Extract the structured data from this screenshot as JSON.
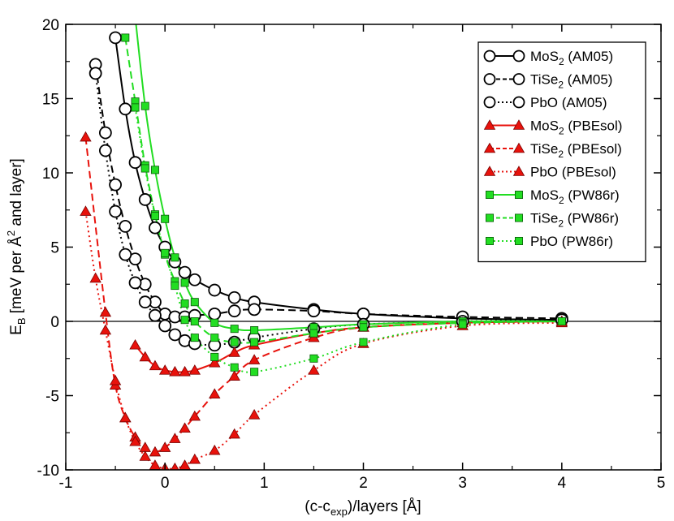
{
  "chart_data": {
    "type": "line",
    "xlabel": {
      "main": "(c-c",
      "sub": "exp",
      "rest": ")/layers [Å]"
    },
    "ylabel": {
      "main": "E",
      "sub": "B",
      "rest": " [meV per Å",
      "sup": "2",
      "tail": " and layer]"
    },
    "xlim": [
      -1,
      5
    ],
    "ylim": [
      -10,
      20
    ],
    "xticks": [
      -1,
      0,
      1,
      2,
      3,
      4,
      5
    ],
    "yticks": [
      -10,
      -5,
      0,
      5,
      10,
      15,
      20
    ],
    "xtick_labels": [
      "-1",
      "0",
      "1",
      "2",
      "3",
      "4",
      "5"
    ],
    "ytick_labels": [
      "-10",
      "-5",
      "0",
      "5",
      "10",
      "15",
      "20"
    ],
    "zero_line": true,
    "grid": false,
    "legend_position": "top-right",
    "colors": {
      "AM05": "#000000",
      "PBEsol": "#e8120c",
      "PW86r": "#22dd22"
    },
    "series": [
      {
        "id": "mos2-am05",
        "name": "MoS2 (AM05)",
        "label_parts": [
          "MoS",
          "2",
          " (AM05)"
        ],
        "functional": "AM05",
        "marker": "circle",
        "dash": "solid",
        "x": [
          -0.5,
          -0.4,
          -0.3,
          -0.2,
          -0.1,
          0.0,
          0.1,
          0.2,
          0.3,
          0.5,
          0.7,
          0.9,
          1.5,
          2.0,
          3.0,
          4.0
        ],
        "y": [
          19.1,
          14.3,
          10.7,
          8.2,
          6.3,
          5.0,
          4.0,
          3.3,
          2.8,
          2.1,
          1.6,
          1.3,
          0.8,
          0.5,
          0.2,
          0.1
        ]
      },
      {
        "id": "tise2-am05",
        "name": "TiSe2 (AM05)",
        "label_parts": [
          "TiSe",
          "2",
          " (AM05)"
        ],
        "functional": "AM05",
        "marker": "circle",
        "dash": "dash",
        "x": [
          -0.7,
          -0.6,
          -0.5,
          -0.4,
          -0.3,
          -0.2,
          -0.1,
          0.0,
          0.1,
          0.2,
          0.3,
          0.5,
          0.7,
          0.9,
          1.5,
          2.0,
          3.0,
          4.0
        ],
        "y": [
          17.3,
          12.7,
          9.2,
          6.4,
          4.2,
          2.5,
          1.3,
          0.5,
          0.3,
          0.3,
          0.4,
          0.5,
          0.7,
          0.8,
          0.7,
          0.5,
          0.3,
          0.2
        ]
      },
      {
        "id": "pbo-am05",
        "name": "PbO (AM05)",
        "label_parts": [
          "PbO",
          "",
          " (AM05)"
        ],
        "functional": "AM05",
        "marker": "circle",
        "dash": "dot",
        "x": [
          -0.7,
          -0.6,
          -0.5,
          -0.4,
          -0.3,
          -0.2,
          -0.1,
          0.0,
          0.1,
          0.2,
          0.3,
          0.5,
          0.7,
          0.9,
          1.5,
          2.0,
          3.0,
          4.0
        ],
        "y": [
          16.7,
          11.5,
          7.4,
          4.5,
          2.6,
          1.3,
          0.4,
          -0.3,
          -0.9,
          -1.3,
          -1.5,
          -1.6,
          -1.4,
          -1.1,
          -0.5,
          -0.2,
          0.0,
          0.1
        ]
      },
      {
        "id": "mos2-pbesol",
        "name": "MoS2 (PBEsol)",
        "label_parts": [
          "MoS",
          "2",
          " (PBEsol)"
        ],
        "functional": "PBEsol",
        "marker": "triangle",
        "dash": "solid",
        "x": [
          -0.3,
          -0.2,
          -0.1,
          0.0,
          0.1,
          0.2,
          0.3,
          0.5,
          0.7,
          0.9,
          1.5,
          2.0,
          3.0,
          4.0
        ],
        "y": [
          -1.6,
          -2.4,
          -3.0,
          -3.3,
          -3.4,
          -3.4,
          -3.3,
          -2.8,
          -2.1,
          -1.6,
          -0.8,
          -0.4,
          -0.1,
          0.0
        ]
      },
      {
        "id": "tise2-pbesol",
        "name": "TiSe2 (PBEsol)",
        "label_parts": [
          "TiSe",
          "2",
          " (PBEsol)"
        ],
        "functional": "PBEsol",
        "marker": "triangle",
        "dash": "dash",
        "x": [
          -0.8,
          -0.6,
          -0.5,
          -0.4,
          -0.3,
          -0.2,
          -0.1,
          0.0,
          0.1,
          0.2,
          0.3,
          0.5,
          0.7,
          0.9,
          1.5,
          2.0,
          3.0,
          4.0
        ],
        "y": [
          12.4,
          0.6,
          -4.3,
          -6.5,
          -7.8,
          -8.5,
          -8.8,
          -8.5,
          -7.9,
          -7.2,
          -6.4,
          -4.9,
          -3.7,
          -2.6,
          -1.1,
          -0.4,
          -0.1,
          0.0
        ]
      },
      {
        "id": "pbo-pbesol",
        "name": "PbO (PBEsol)",
        "label_parts": [
          "PbO",
          "",
          " (PBEsol)"
        ],
        "functional": "PBEsol",
        "marker": "triangle",
        "dash": "dot",
        "x": [
          -0.8,
          -0.7,
          -0.6,
          -0.5,
          -0.4,
          -0.3,
          -0.2,
          -0.1,
          0.0,
          0.1,
          0.2,
          0.3,
          0.5,
          0.7,
          0.9,
          1.5,
          2.0,
          3.0,
          4.0
        ],
        "y": [
          7.4,
          2.9,
          -0.6,
          -4.0,
          -6.5,
          -8.1,
          -9.1,
          -9.7,
          -9.9,
          -9.9,
          -9.7,
          -9.3,
          -8.7,
          -7.6,
          -6.3,
          -3.3,
          -1.5,
          -0.3,
          -0.1
        ]
      },
      {
        "id": "mos2-pw86r",
        "name": "MoS2 (PW86r)",
        "label_parts": [
          "MoS",
          "2",
          " (PW86r)"
        ],
        "functional": "PW86r",
        "marker": "square",
        "dash": "solid",
        "x": [
          -0.3,
          -0.2,
          -0.1,
          0.0,
          0.1,
          0.2,
          0.3,
          0.5,
          0.7,
          0.9,
          1.5,
          2.0,
          3.0,
          4.0
        ],
        "y": [
          20.5,
          14.5,
          10.2,
          6.9,
          4.3,
          2.6,
          1.3,
          -0.1,
          -0.5,
          -0.6,
          -0.4,
          -0.2,
          0.0,
          0.0
        ]
      },
      {
        "id": "tise2-pw86r",
        "name": "TiSe2 (PW86r)",
        "label_parts": [
          "TiSe",
          "2",
          " (PW86r)"
        ],
        "functional": "PW86r",
        "marker": "square",
        "dash": "dash",
        "x": [
          -0.4,
          -0.3,
          -0.2,
          -0.1,
          0.0,
          0.1,
          0.2,
          0.3,
          0.5,
          0.7,
          0.9,
          1.5,
          2.0,
          3.0,
          4.0
        ],
        "y": [
          19.1,
          14.8,
          10.5,
          7.2,
          4.5,
          2.7,
          1.2,
          0.0,
          -1.1,
          -1.4,
          -1.4,
          -0.8,
          -0.4,
          -0.1,
          0.0
        ]
      },
      {
        "id": "pbo-pw86r",
        "name": "PbO (PW86r)",
        "label_parts": [
          "PbO",
          "",
          " (PW86r)"
        ],
        "functional": "PW86r",
        "marker": "square",
        "dash": "dot",
        "x": [
          -0.3,
          -0.2,
          -0.1,
          0.0,
          0.1,
          0.2,
          0.3,
          0.5,
          0.7,
          0.9,
          1.5,
          2.0,
          3.0,
          4.0
        ],
        "y": [
          14.4,
          10.3,
          7.1,
          4.6,
          2.4,
          0.1,
          -1.1,
          -2.4,
          -3.1,
          -3.4,
          -2.5,
          -1.4,
          -0.2,
          0.0
        ]
      }
    ]
  }
}
